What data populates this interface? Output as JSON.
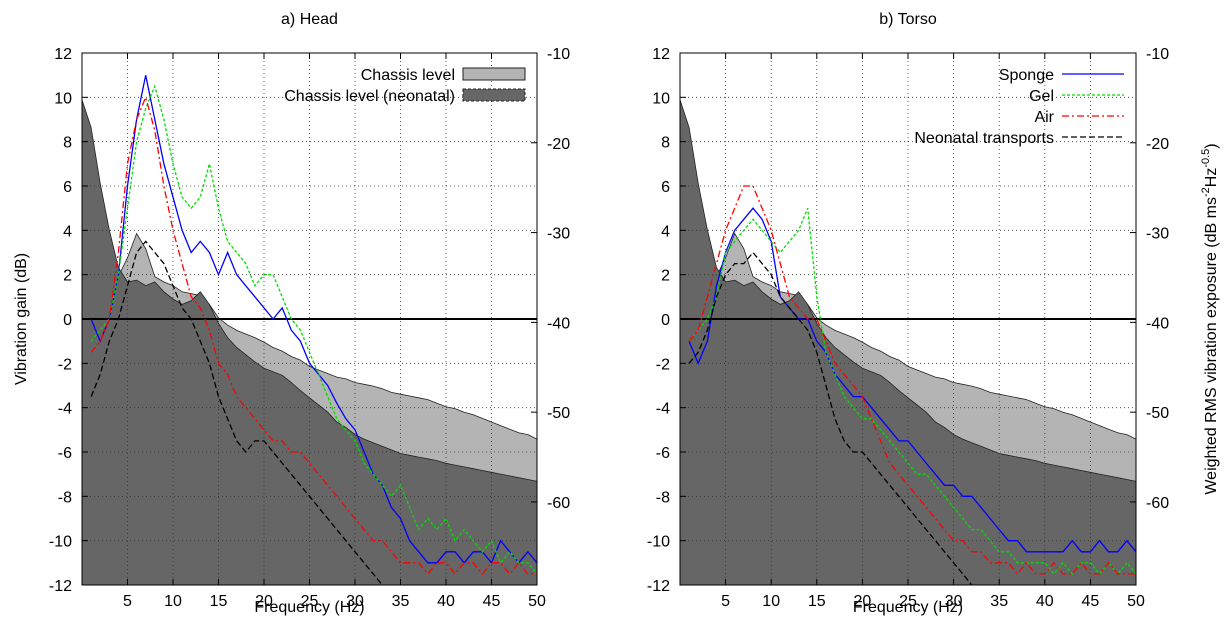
{
  "chart_data": [
    {
      "type": "line",
      "title": "a) Head",
      "xlabel": "Frequency (Hz)",
      "ylabel": "Vibration gain (dB)",
      "xlim": [
        0,
        50
      ],
      "xticks": [
        5,
        10,
        15,
        20,
        25,
        30,
        35,
        40,
        45,
        50
      ],
      "ylim": [
        -12,
        12
      ],
      "yticks": [
        -12,
        -10,
        -8,
        -6,
        -4,
        -2,
        0,
        2,
        4,
        6,
        8,
        10,
        12
      ],
      "y2lim": [
        -69.25,
        -10
      ],
      "y2ticks": [
        -60,
        -50,
        -40,
        -30,
        -20,
        -10
      ],
      "grid": true,
      "zero_line": true,
      "legend": "upper right",
      "x": [
        0,
        1,
        2,
        3,
        4,
        5,
        6,
        7,
        8,
        9,
        10,
        11,
        12,
        13,
        14,
        15,
        16,
        17,
        18,
        19,
        20,
        21,
        22,
        23,
        24,
        25,
        26,
        27,
        28,
        29,
        30,
        31,
        32,
        33,
        34,
        35,
        36,
        37,
        38,
        39,
        40,
        41,
        42,
        43,
        44,
        45,
        46,
        47,
        48,
        49,
        50
      ],
      "series": [
        {
          "name": "Chassis level",
          "style": "area",
          "color": "#b4b4b4",
          "axis": "y2",
          "in_legend": true,
          "values": [
            -42.2,
            -40.7,
            -39.1,
            -37.0,
            -34.9,
            -32.8,
            -30.1,
            -31.8,
            -34.9,
            -35.5,
            -35.9,
            -36.6,
            -36.8,
            -37.0,
            -38.0,
            -39.5,
            -40.3,
            -40.9,
            -41.3,
            -41.7,
            -42.2,
            -42.8,
            -43.2,
            -43.8,
            -44.2,
            -44.9,
            -45.3,
            -45.7,
            -46.1,
            -46.3,
            -46.7,
            -46.9,
            -47.1,
            -47.4,
            -47.8,
            -48.0,
            -48.2,
            -48.4,
            -48.6,
            -49.0,
            -49.4,
            -49.6,
            -50.0,
            -50.3,
            -50.7,
            -51.1,
            -51.5,
            -51.9,
            -52.3,
            -52.5,
            -53.0
          ]
        },
        {
          "name": "Chassis level (neonatal)",
          "style": "area",
          "color": "#666666",
          "axis": "y2",
          "in_legend": true,
          "values": [
            -15.2,
            -18.3,
            -24.5,
            -29.7,
            -33.9,
            -35.5,
            -35.3,
            -35.9,
            -35.5,
            -36.6,
            -37.4,
            -38.0,
            -37.6,
            -36.6,
            -38.0,
            -40.1,
            -41.7,
            -42.8,
            -43.6,
            -44.4,
            -45.1,
            -45.5,
            -45.9,
            -46.7,
            -47.6,
            -48.4,
            -49.2,
            -50.0,
            -51.1,
            -51.7,
            -52.5,
            -53.0,
            -53.4,
            -53.8,
            -54.2,
            -54.6,
            -54.8,
            -55.0,
            -55.2,
            -55.4,
            -55.7,
            -55.9,
            -56.1,
            -56.3,
            -56.5,
            -56.7,
            -56.9,
            -57.1,
            -57.3,
            -57.5,
            -57.7
          ]
        },
        {
          "name": "Sponge",
          "style": "solid",
          "color": "#0000ff",
          "in_legend": false,
          "values": [
            null,
            0,
            -1,
            0,
            2,
            6,
            9,
            11,
            9,
            7,
            5.5,
            4,
            3,
            3.5,
            3,
            2,
            3,
            2,
            1.5,
            1,
            0.5,
            0,
            0.5,
            -0.5,
            -1,
            -2,
            -2.5,
            -3,
            -3.8,
            -4.5,
            -5,
            -6,
            -7,
            -7.5,
            -8.5,
            -9,
            -10,
            -10.5,
            -11,
            -11,
            -10.5,
            -10.5,
            -11,
            -10.5,
            -10.5,
            -11,
            -10,
            -10.5,
            -11,
            -10.5,
            -11
          ]
        },
        {
          "name": "Gel",
          "style": "dashed",
          "color": "#00dd00",
          "in_legend": false,
          "values": [
            null,
            -1,
            -0.5,
            0,
            2,
            5,
            8,
            9.5,
            10.5,
            9,
            7,
            5.5,
            5,
            5.5,
            7,
            5,
            3.5,
            3,
            2.5,
            1.5,
            2,
            2,
            1,
            0,
            -0.5,
            -1.5,
            -2.5,
            -3.5,
            -4.5,
            -5,
            -5.5,
            -6.5,
            -7,
            -7.5,
            -8,
            -7.5,
            -8.5,
            -9.5,
            -9,
            -9.5,
            -9,
            -10,
            -9.5,
            -10,
            -10.5,
            -10,
            -11,
            -10.5,
            -11,
            -11,
            -11.5
          ]
        },
        {
          "name": "Air",
          "style": "dashdot",
          "color": "#ff0000",
          "in_legend": false,
          "values": [
            null,
            -1.5,
            -1,
            0,
            3,
            7,
            9,
            10,
            8.5,
            6,
            4,
            2.5,
            1,
            0.5,
            -0.5,
            -2,
            -2.5,
            -3.5,
            -4,
            -4.5,
            -5,
            -5.5,
            -5.5,
            -6,
            -6,
            -6.5,
            -7,
            -7.5,
            -8,
            -8.5,
            -9,
            -9.5,
            -10,
            -10,
            -10.5,
            -11,
            -11,
            -11,
            -11.5,
            -11,
            -11,
            -11.5,
            -11,
            -11,
            -11.5,
            -11,
            -11,
            -11.5,
            -11,
            -11.5,
            -11.5
          ]
        },
        {
          "name": "Neonatal transports",
          "style": "longdash",
          "color": "#000000",
          "in_legend": false,
          "values": [
            null,
            -3.5,
            -2.5,
            -1,
            0,
            1.5,
            3,
            3.5,
            3,
            2.5,
            1.5,
            0.5,
            0,
            -1,
            -2,
            -3.5,
            -4.5,
            -5.5,
            -6,
            -5.5,
            -5.5,
            -6,
            -6.5,
            -7,
            -7.5,
            -8,
            -8.5,
            -9,
            -9.5,
            -10,
            -10.5,
            -11,
            -11.5,
            -12,
            null,
            null,
            null,
            null,
            null,
            null,
            null,
            null,
            null,
            null,
            null,
            null,
            null,
            null,
            null,
            null,
            null
          ]
        }
      ]
    },
    {
      "type": "line",
      "title": "b) Torso",
      "xlabel": "Frequency (Hz)",
      "y2label_parts": [
        "Weighted RMS vibration exposure (dB ms",
        "-2",
        "Hz",
        "-0.5",
        ")"
      ],
      "xlim": [
        0,
        50
      ],
      "xticks": [
        5,
        10,
        15,
        20,
        25,
        30,
        35,
        40,
        45,
        50
      ],
      "ylim": [
        -12,
        12
      ],
      "yticks": [
        -12,
        -10,
        -8,
        -6,
        -4,
        -2,
        0,
        2,
        4,
        6,
        8,
        10,
        12
      ],
      "y2lim": [
        -69.25,
        -10
      ],
      "y2ticks": [
        -60,
        -50,
        -40,
        -30,
        -20,
        -10
      ],
      "grid": true,
      "zero_line": true,
      "legend": "upper right",
      "x": [
        0,
        1,
        2,
        3,
        4,
        5,
        6,
        7,
        8,
        9,
        10,
        11,
        12,
        13,
        14,
        15,
        16,
        17,
        18,
        19,
        20,
        21,
        22,
        23,
        24,
        25,
        26,
        27,
        28,
        29,
        30,
        31,
        32,
        33,
        34,
        35,
        36,
        37,
        38,
        39,
        40,
        41,
        42,
        43,
        44,
        45,
        46,
        47,
        48,
        49,
        50
      ],
      "series": [
        {
          "name": "Chassis level",
          "style": "area",
          "color": "#b4b4b4",
          "axis": "y2",
          "in_legend": false,
          "values": [
            -42.2,
            -40.7,
            -39.1,
            -37.0,
            -34.9,
            -32.8,
            -30.1,
            -31.8,
            -34.9,
            -35.5,
            -35.9,
            -36.6,
            -36.8,
            -37.0,
            -38.0,
            -39.5,
            -40.3,
            -40.9,
            -41.3,
            -41.7,
            -42.2,
            -42.8,
            -43.2,
            -43.8,
            -44.2,
            -44.9,
            -45.3,
            -45.7,
            -46.1,
            -46.3,
            -46.7,
            -46.9,
            -47.1,
            -47.4,
            -47.8,
            -48.0,
            -48.2,
            -48.4,
            -48.6,
            -49.0,
            -49.4,
            -49.6,
            -50.0,
            -50.3,
            -50.7,
            -51.1,
            -51.5,
            -51.9,
            -52.3,
            -52.5,
            -53.0
          ]
        },
        {
          "name": "Chassis level (neonatal)",
          "style": "area",
          "color": "#666666",
          "axis": "y2",
          "in_legend": false,
          "values": [
            -15.2,
            -18.3,
            -24.5,
            -29.7,
            -33.9,
            -35.5,
            -35.3,
            -35.9,
            -35.5,
            -36.6,
            -37.4,
            -38.0,
            -37.6,
            -36.6,
            -38.0,
            -40.1,
            -41.7,
            -42.8,
            -43.6,
            -44.4,
            -45.1,
            -45.5,
            -45.9,
            -46.7,
            -47.6,
            -48.4,
            -49.2,
            -50.0,
            -51.1,
            -51.7,
            -52.5,
            -53.0,
            -53.4,
            -53.8,
            -54.2,
            -54.6,
            -54.8,
            -55.0,
            -55.2,
            -55.4,
            -55.7,
            -55.9,
            -56.1,
            -56.3,
            -56.5,
            -56.7,
            -56.9,
            -57.1,
            -57.3,
            -57.5,
            -57.7
          ]
        },
        {
          "name": "Sponge",
          "style": "solid",
          "color": "#0000ff",
          "in_legend": true,
          "values": [
            null,
            -1,
            -2,
            -1,
            1.5,
            3,
            4,
            4.5,
            5,
            4.5,
            3.5,
            1,
            0.5,
            0,
            0,
            -1,
            -1.5,
            -2.5,
            -3,
            -3.5,
            -3.5,
            -4,
            -4.5,
            -5,
            -5.5,
            -5.5,
            -6,
            -6.5,
            -7,
            -7.5,
            -7.5,
            -8,
            -8,
            -8.5,
            -9,
            -9.5,
            -10,
            -10,
            -10.5,
            -10.5,
            -10.5,
            -10.5,
            -10.5,
            -10,
            -10.5,
            -10.5,
            -10,
            -10.5,
            -10.5,
            -10,
            -10.5
          ]
        },
        {
          "name": "Gel",
          "style": "dashed",
          "color": "#00dd00",
          "in_legend": true,
          "values": [
            null,
            -1,
            -0.5,
            0,
            1,
            3,
            3.5,
            4,
            4.5,
            4,
            3.5,
            3,
            3.5,
            4,
            5,
            1,
            -1.5,
            -2.5,
            -3.5,
            -4,
            -4.5,
            -4.5,
            -5,
            -5.5,
            -6,
            -6.5,
            -7,
            -7,
            -7.5,
            -8,
            -8.5,
            -9,
            -9.5,
            -9.5,
            -10,
            -10.5,
            -10.5,
            -11,
            -11,
            -11,
            -11,
            -11.5,
            -11,
            -11.5,
            -11,
            -11,
            -11.5,
            -11,
            -11.5,
            -11,
            -11.5
          ]
        },
        {
          "name": "Air",
          "style": "dashdot",
          "color": "#ff0000",
          "in_legend": true,
          "values": [
            null,
            -1,
            -0.5,
            1,
            2.5,
            4,
            5,
            6,
            6,
            5,
            4,
            2.5,
            1,
            0.5,
            0,
            0,
            -1,
            -2,
            -2.5,
            -3,
            -3.5,
            -4.5,
            -5.5,
            -6.5,
            -7,
            -7.5,
            -8,
            -8.5,
            -9,
            -9.5,
            -10,
            -10,
            -10.5,
            -10.5,
            -11,
            -11,
            -11,
            -11.5,
            -11,
            -11.5,
            -11.5,
            -11,
            -11.5,
            -11.5,
            -11,
            -11.5,
            -11.5,
            -11,
            -11.5,
            -11.5,
            -11.5
          ]
        },
        {
          "name": "Neonatal transports",
          "style": "longdash",
          "color": "#000000",
          "in_legend": true,
          "values": [
            null,
            -2,
            -1.5,
            -0.5,
            1,
            2,
            2.5,
            2.5,
            3,
            2.5,
            2,
            1,
            0.5,
            0,
            -0.5,
            -1.5,
            -3,
            -4.5,
            -5.5,
            -6,
            -6,
            -6.5,
            -7,
            -7.5,
            -8,
            -8.5,
            -9,
            -9.5,
            -10,
            -10.5,
            -11,
            -11.5,
            -12,
            null,
            null,
            null,
            null,
            null,
            null,
            null,
            null,
            null,
            null,
            null,
            null,
            null,
            null,
            null,
            null,
            null,
            null
          ]
        }
      ]
    }
  ]
}
